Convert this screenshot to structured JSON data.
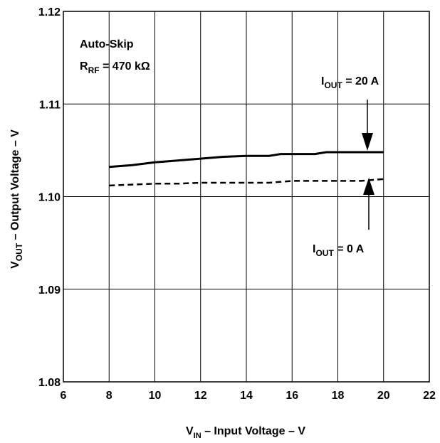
{
  "chart_data": {
    "type": "line",
    "xlabel_main": "V",
    "xlabel_sub": "IN",
    "xlabel_rest": " – Input Voltage – V",
    "ylabel_main": "V",
    "ylabel_sub": "OUT",
    "ylabel_rest": " – Output Voltage – V",
    "xlim": [
      6,
      22
    ],
    "ylim": [
      1.08,
      1.12
    ],
    "x_ticks": [
      "6",
      "8",
      "10",
      "12",
      "14",
      "16",
      "18",
      "20",
      "22"
    ],
    "y_ticks": [
      "1.08",
      "1.09",
      "1.10",
      "1.11",
      "1.12"
    ],
    "grid": true,
    "annotation_mode": "Auto-Skip",
    "annotation_rrf_main": "R",
    "annotation_rrf_sub": "RF",
    "annotation_rrf_rest": " = 470 kΩ",
    "series": [
      {
        "label_main": "I",
        "label_sub": "OUT",
        "label_rest": " = 20 A",
        "style": "solid",
        "x": [
          8,
          9,
          10,
          11,
          12,
          13,
          14,
          15,
          15.5,
          16,
          17,
          17.5,
          18,
          19,
          20
        ],
        "y": [
          1.1032,
          1.1034,
          1.1037,
          1.1039,
          1.1041,
          1.1043,
          1.1044,
          1.1044,
          1.1046,
          1.1046,
          1.1046,
          1.1048,
          1.1048,
          1.1048,
          1.1048
        ]
      },
      {
        "label_main": "I",
        "label_sub": "OUT",
        "label_rest": " = 0 A",
        "style": "dashed",
        "x": [
          8,
          9,
          10,
          11,
          12,
          13,
          14,
          15,
          16,
          17,
          18,
          19,
          19.5,
          20
        ],
        "y": [
          1.1012,
          1.1013,
          1.1014,
          1.1014,
          1.1015,
          1.1015,
          1.1015,
          1.1015,
          1.1017,
          1.1017,
          1.1017,
          1.1017,
          1.1018,
          1.1019
        ]
      }
    ]
  }
}
